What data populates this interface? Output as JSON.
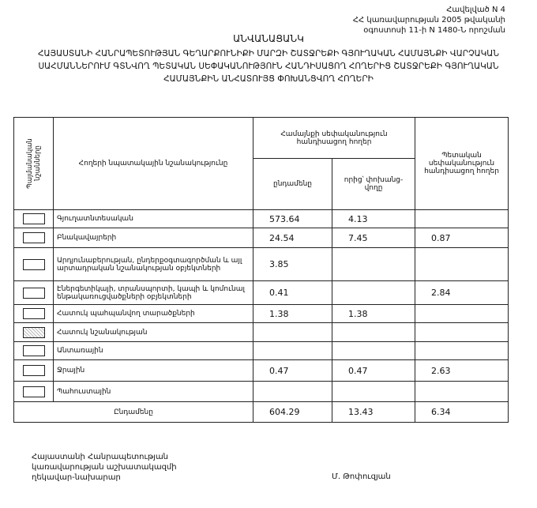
{
  "header": {
    "lines": [
      "Հավելված N 4",
      "ՀՀ կառավարության 2005 թվականի",
      "օգոստոսի 11-ի N 1480-Ն որոշման"
    ],
    "title": "ԱՆՎԱՆԱՑԱՆԿ",
    "subtitle": "ՀԱՅԱՍՏԱՆԻ ՀԱՆՐԱՊԵՏՈՒԹՅԱՆ ԳԵՂԱՐՔՈՒՆԻՔԻ ՄԱՐԶԻ ՇԱՏՋՐԵՔԻ ԳՅՈՒՂԱԿԱՆ ՀԱՄԱՅՆՔԻ ՎԱՐՉԱԿԱՆ ՍԱՀՄԱՆՆԵՐՈՒՄ ԳՏՆՎՈՂ ՊԵՏԱԿԱՆ ՍԵՓԱԿԱՆՈՒԹՅՈՒՆ ՀԱՆԴԻՍԱՑՈՂ ՀՈՂԵՐԻՑ ՇԱՏՋՐԵՔԻ ԳՅՈՒՂԱԿԱՆ ՀԱՄԱՅՆՔԻՆ ԱՆՀԱՏՈՒՅՑ ՓՈԽԱՆՑՎՈՂ ՀՈՂԵՐԻ"
  },
  "table": {
    "headers": {
      "legend": "Պայմանական նշանները",
      "purpose": "Հողերի նպատակային նշանակությունը",
      "community": "Համայնքի սեփականություն հանդիսացող հողեր",
      "total": "ընդամենը",
      "transferred": "որից՝ փոխանց-վողը",
      "state": "Պետական սեփականություն հանդիսացող հողեր"
    },
    "rows": [
      [
        "Գյուղատնտեսական",
        573.64,
        4.13,
        null
      ],
      [
        "Բնակավայրերի",
        24.54,
        7.45,
        0.87
      ],
      [
        "Արդյունաբերության, ընդերքօգտագործման և այլ արտադրական նշանակության օբյեկտների",
        3.85,
        null,
        null
      ],
      [
        "Էներգետիկայի, տրանսպորտի, կապի և կոմունալ ենթակառուցվածքների օբյեկտների",
        0.41,
        null,
        2.84
      ],
      [
        "Հատուկ պահպանվող տարածքների",
        1.38,
        1.38,
        null
      ],
      [
        "Հատուկ նշանակության",
        null,
        null,
        null
      ],
      [
        "Անտառային",
        null,
        null,
        null
      ],
      [
        "Ջրային",
        0.47,
        0.47,
        2.63
      ],
      [
        "Պահուստային",
        null,
        null,
        null
      ]
    ],
    "total_row": [
      "Ընդամենը",
      604.29,
      13.43,
      6.34
    ]
  },
  "footer": {
    "signer_lines": [
      "Հայաստանի Հանրապետության",
      "կառավարության աշխատակազմի",
      "ղեկավար-նախարար"
    ],
    "name": "Մ. Թոփուզյան"
  }
}
